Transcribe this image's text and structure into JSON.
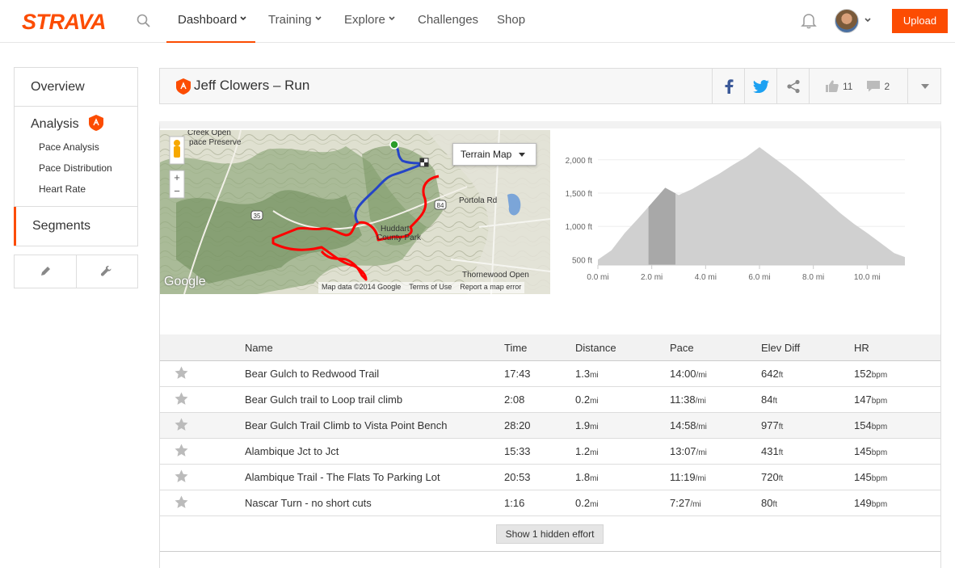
{
  "brand": {
    "logo": "STRAVA",
    "accent": "#fc4c02"
  },
  "nav": {
    "items": [
      {
        "label": "Dashboard",
        "dropdown": true,
        "active": true
      },
      {
        "label": "Training",
        "dropdown": true
      },
      {
        "label": "Explore",
        "dropdown": true
      },
      {
        "label": "Challenges"
      },
      {
        "label": "Shop"
      }
    ],
    "upload_label": "Upload",
    "icons": [
      "search-icon",
      "bell-icon",
      "avatar",
      "chevron-down-icon"
    ]
  },
  "sidebar": {
    "overview": "Overview",
    "analysis": "Analysis",
    "analysis_items": [
      "Pace Analysis",
      "Pace Distribution",
      "Heart Rate"
    ],
    "segments": "Segments",
    "tools": [
      "pencil-icon",
      "wrench-icon"
    ]
  },
  "activity": {
    "title": "Jeff Clowers – Run",
    "kudos": "11",
    "comments": "2"
  },
  "map": {
    "type_label": "Terrain Map",
    "credits": [
      "Map data ©2014 Google",
      "Terms of Use",
      "Report a map error"
    ],
    "google_logo": "Google"
  },
  "chart_data": {
    "type": "area",
    "x": [
      0,
      0.5,
      1.0,
      1.5,
      2.0,
      2.5,
      3.0,
      3.5,
      4.0,
      4.5,
      5.0,
      5.5,
      6.0,
      6.5,
      7.0,
      7.5,
      8.0,
      8.5,
      9.0,
      9.5,
      10.0,
      10.5,
      11.0,
      11.4
    ],
    "y": [
      500,
      640,
      900,
      1120,
      1350,
      1580,
      1470,
      1560,
      1680,
      1790,
      1920,
      2040,
      2190,
      2040,
      1890,
      1730,
      1560,
      1380,
      1200,
      1040,
      900,
      750,
      600,
      540
    ],
    "highlight_range": [
      1.88,
      2.88
    ],
    "xlabel": "",
    "ylabel": "",
    "xticks": [
      "0.0 mi",
      "2.0 mi",
      "4.0 mi",
      "6.0 mi",
      "8.0 mi",
      "10.0 mi"
    ],
    "xtick_values": [
      0,
      2,
      4,
      6,
      8,
      10
    ],
    "yticks": [
      "2,000 ft",
      "1,500 ft",
      "1,000 ft",
      "500 ft"
    ],
    "ytick_values": [
      2000,
      1500,
      1000,
      500
    ],
    "xlim": [
      0,
      11.4
    ],
    "ylim": [
      420,
      2240
    ],
    "fill_color": "#d0d0d0",
    "highlight_color": "#a8a8a8"
  },
  "segments_table": {
    "headers": [
      "Name",
      "Time",
      "Distance",
      "Pace",
      "Elev Diff",
      "HR"
    ],
    "rows": [
      {
        "name": "Bear Gulch to Redwood Trail",
        "time": "17:43",
        "distance": "1.3",
        "distance_unit": "mi",
        "pace": "14:00",
        "pace_unit": "/mi",
        "elev": "642",
        "elev_unit": "ft",
        "hr": "152",
        "hr_unit": "bpm"
      },
      {
        "name": "Bear Gulch trail to Loop trail climb",
        "time": "2:08",
        "distance": "0.2",
        "distance_unit": "mi",
        "pace": "11:38",
        "pace_unit": "/mi",
        "elev": "84",
        "elev_unit": "ft",
        "hr": "147",
        "hr_unit": "bpm"
      },
      {
        "name": "Bear Gulch Trail Climb to Vista Point Bench",
        "time": "28:20",
        "distance": "1.9",
        "distance_unit": "mi",
        "pace": "14:58",
        "pace_unit": "/mi",
        "elev": "977",
        "elev_unit": "ft",
        "hr": "154",
        "hr_unit": "bpm",
        "highlight": true
      },
      {
        "name": "Alambique Jct to Jct",
        "time": "15:33",
        "distance": "1.2",
        "distance_unit": "mi",
        "pace": "13:07",
        "pace_unit": "/mi",
        "elev": "431",
        "elev_unit": "ft",
        "hr": "145",
        "hr_unit": "bpm"
      },
      {
        "name": "Alambique Trail - The Flats To Parking Lot",
        "time": "20:53",
        "distance": "1.8",
        "distance_unit": "mi",
        "pace": "11:19",
        "pace_unit": "/mi",
        "elev": "720",
        "elev_unit": "ft",
        "hr": "145",
        "hr_unit": "bpm"
      },
      {
        "name": "Nascar Turn - no short cuts",
        "time": "1:16",
        "distance": "0.2",
        "distance_unit": "mi",
        "pace": "7:27",
        "pace_unit": "/mi",
        "elev": "80",
        "elev_unit": "ft",
        "hr": "149",
        "hr_unit": "bpm"
      }
    ],
    "show_hidden_label": "Show 1 hidden effort"
  }
}
